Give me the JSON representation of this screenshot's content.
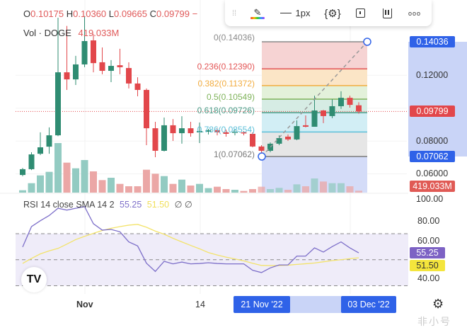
{
  "header": {
    "ohlc": [
      {
        "label": "O",
        "value": "0.10175"
      },
      {
        "label": "H",
        "value": "0.10360"
      },
      {
        "label": "L",
        "value": "0.09665"
      },
      {
        "label": "C",
        "value": "0.09799"
      }
    ],
    "suffix": "−",
    "volume_label": "Vol · DOGE",
    "volume_value": "419.033M"
  },
  "toolbar": {
    "width_label": "1px",
    "icons": [
      "drag-handle-icon",
      "brush-color-icon",
      "line-width-icon",
      "settings-icon",
      "alert-icon",
      "pause-icon",
      "more-icon"
    ]
  },
  "fib": {
    "start": 0.07062,
    "end": 0.14036,
    "levels": [
      {
        "label": "0(0.14036)",
        "ratio": 0,
        "price": 0.14036,
        "color": "#8a8a8a",
        "fill": "#f6d3d3"
      },
      {
        "label": "0.236(0.12390)",
        "ratio": 0.236,
        "price": 0.1239,
        "color": "#e35555",
        "fill": "#fbe5c6"
      },
      {
        "label": "0.382(0.11372)",
        "ratio": 0.382,
        "price": 0.11372,
        "color": "#f2ac3f",
        "fill": "#e3f1da"
      },
      {
        "label": "0.5(0.10549)",
        "ratio": 0.5,
        "price": 0.10549,
        "color": "#7fb35a",
        "fill": "#d6ece4"
      },
      {
        "label": "0.618(0.09726)",
        "ratio": 0.618,
        "price": 0.09726,
        "color": "#4a9a86",
        "fill": "#d2eef5"
      },
      {
        "label": "0.786(0.08554)",
        "ratio": 0.786,
        "price": 0.08554,
        "color": "#5bbfd8",
        "fill": "#e6e6e6"
      },
      {
        "label": "1(0.07062)",
        "ratio": 1,
        "price": 0.07062,
        "color": "#7a7a7a",
        "fill": null
      }
    ]
  },
  "price_axis": {
    "ticks": [
      "0.12000",
      "0.08000",
      "0.06000"
    ],
    "tick_values": [
      0.12,
      0.08,
      0.06
    ],
    "fib_high_label": "0.14036",
    "fib_low_label": "0.07062",
    "last_price_label": "0.09799",
    "volume_label": "419.033M"
  },
  "rsi": {
    "title": "RSI 14 close SMA 14 2",
    "rsi_value": "55.25",
    "sma_value": "51.50",
    "flags": "∅ ∅",
    "ticks": [
      "100.00",
      "80.00",
      "60.00",
      "40.00"
    ],
    "tick_values": [
      100,
      80,
      60,
      40
    ],
    "band": [
      70,
      50,
      30
    ]
  },
  "time_axis": {
    "ticks": [
      {
        "label": "Nov",
        "bold": true
      },
      {
        "label": "14",
        "bold": false
      }
    ],
    "range_start": "21 Nov '22",
    "range_end": "03 Dec '22"
  },
  "watermark": "非小号",
  "colors": {
    "up": "#2f8c72",
    "down": "#e2474b",
    "vol_up": "#93cbc2",
    "vol_down": "#eba7a6",
    "rsi": "#7d6fc9",
    "sma": "#f3e36a",
    "accent": "#2f62e8",
    "selection": "#c9d4f7"
  },
  "chart_data": {
    "type": "candlestick",
    "candles_ohlc": [
      [
        0.0594,
        0.0637,
        0.0586,
        0.0629
      ],
      [
        0.0629,
        0.0732,
        0.0624,
        0.0719
      ],
      [
        0.0723,
        0.0853,
        0.0715,
        0.0762
      ],
      [
        0.0766,
        0.0883,
        0.0723,
        0.0835
      ],
      [
        0.0835,
        0.155,
        0.083,
        0.1218
      ],
      [
        0.1218,
        0.15,
        0.1111,
        0.1175
      ],
      [
        0.1175,
        0.1318,
        0.1141,
        0.1266
      ],
      [
        0.1266,
        0.156,
        0.1249,
        0.1408
      ],
      [
        0.1412,
        0.145,
        0.1218,
        0.1274
      ],
      [
        0.1279,
        0.1369,
        0.1206,
        0.1227
      ],
      [
        0.1227,
        0.1292,
        0.1158,
        0.1257
      ],
      [
        0.1261,
        0.1361,
        0.1206,
        0.1249
      ],
      [
        0.1244,
        0.1279,
        0.112,
        0.115
      ],
      [
        0.115,
        0.1188,
        0.1072,
        0.1111
      ],
      [
        0.1111,
        0.112,
        0.0775,
        0.0878
      ],
      [
        0.0878,
        0.0917,
        0.0702,
        0.0741
      ],
      [
        0.0741,
        0.0943,
        0.0737,
        0.0896
      ],
      [
        0.0896,
        0.0934,
        0.0801,
        0.0848
      ],
      [
        0.0848,
        0.0951,
        0.0784,
        0.0878
      ],
      [
        0.0878,
        0.0917,
        0.0827,
        0.0848
      ],
      [
        0.0853,
        0.0913,
        0.0788,
        0.0861
      ],
      [
        0.0857,
        0.0874,
        0.084,
        0.0866
      ],
      [
        0.0866,
        0.0878,
        0.0835,
        0.0853
      ],
      [
        0.0853,
        0.087,
        0.0827,
        0.0844
      ],
      [
        0.0853,
        0.0874,
        0.0835,
        0.0857
      ],
      [
        0.0853,
        0.0861,
        0.0835,
        0.0848
      ],
      [
        0.0844,
        0.0853,
        0.0762,
        0.0767
      ],
      [
        0.0767,
        0.0775,
        0.07062,
        0.0741
      ],
      [
        0.0741,
        0.0792,
        0.0732,
        0.0784
      ],
      [
        0.0784,
        0.0835,
        0.0775,
        0.0818
      ],
      [
        0.0827,
        0.084,
        0.0801,
        0.081
      ],
      [
        0.081,
        0.0926,
        0.0805,
        0.0891
      ],
      [
        0.0896,
        0.0956,
        0.0883,
        0.0887
      ],
      [
        0.0887,
        0.1076,
        0.0887,
        0.0986
      ],
      [
        0.0986,
        0.099,
        0.0909,
        0.0952
      ],
      [
        0.0952,
        0.1055,
        0.0939,
        0.1012
      ],
      [
        0.1012,
        0.1103,
        0.0995,
        0.1063
      ],
      [
        0.1063,
        0.1076,
        0.1003,
        0.102
      ],
      [
        0.10175,
        0.1036,
        0.09665,
        0.09799
      ]
    ],
    "volume_m": [
      524,
      2096,
      3825,
      4611,
      11004,
      6655,
      5397,
      7231,
      4716,
      2777,
      3301,
      1939,
      1415,
      1415,
      5083,
      4192,
      3668,
      1939,
      2882,
      1572,
      1939,
      996,
      1310,
      786,
      629,
      367,
      786,
      1310,
      786,
      1048,
      629,
      1834,
      1415,
      3144,
      2463,
      2096,
      2096,
      1415,
      419.033
    ],
    "rsi": [
      59.8,
      75.5,
      80,
      84,
      89.6,
      88.2,
      89.6,
      90.9,
      77.7,
      72.8,
      73.3,
      71.5,
      63.7,
      60.6,
      47.3,
      41.0,
      48.8,
      46.8,
      48.2,
      46.8,
      47.1,
      47.7,
      47.1,
      46.8,
      46.8,
      46.8,
      41.9,
      40.1,
      43.7,
      46.0,
      46.0,
      52.8,
      52.8,
      59.1,
      55.9,
      60.1,
      63.7,
      59.1,
      55.25
    ],
    "rsi_sma": [
      47.2,
      51,
      54.5,
      56.8,
      58.7,
      62,
      65.5,
      68,
      70.3,
      72.5,
      74.2,
      75.5,
      76.6,
      77.2,
      75,
      72,
      69.6,
      66.5,
      63.7,
      61,
      58.4,
      55.5,
      53.6,
      52,
      50.6,
      49.1,
      47.3,
      45.6,
      45.5,
      45.5,
      45.8,
      46.4,
      46.9,
      47.5,
      48.4,
      49.3,
      50.0,
      50.8,
      51.5
    ],
    "last_price": 0.09799,
    "price_range": [
      0.055,
      0.16
    ],
    "rsi_range": [
      20,
      100
    ]
  }
}
